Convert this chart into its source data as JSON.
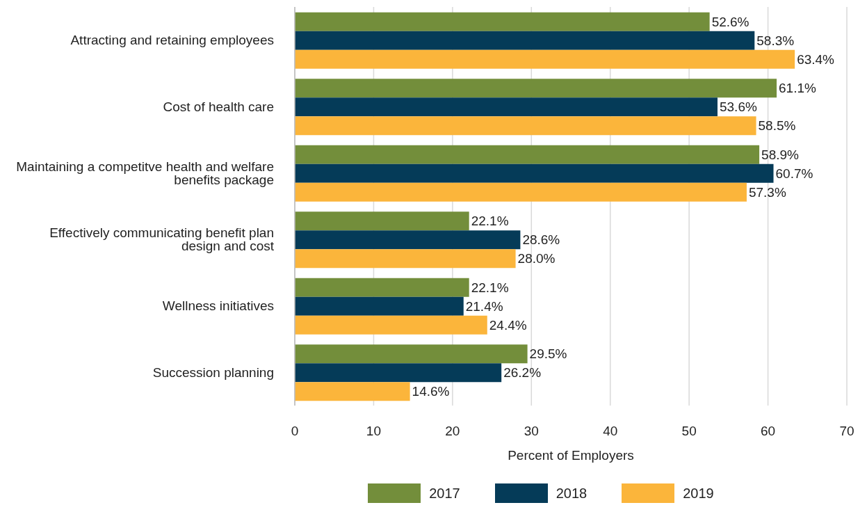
{
  "chart_data": {
    "type": "bar",
    "orientation": "horizontal",
    "xlabel": "Percent of Employers",
    "categories": [
      "Attracting and retaining employees",
      "Cost of health care",
      "Maintaining a competitve health and welfare benefits package",
      "Effectively communicating benefit plan design and cost",
      "Wellness initiatives",
      "Succession planning"
    ],
    "series": [
      {
        "name": "2017",
        "color": "#738e3b",
        "values": [
          52.6,
          61.1,
          58.9,
          22.1,
          22.1,
          29.5
        ],
        "value_labels": [
          "52.6%",
          "61.1%",
          "58.9%",
          "22.1%",
          "22.1%",
          "29.5%"
        ]
      },
      {
        "name": "2018",
        "color": "#053b58",
        "values": [
          58.3,
          53.6,
          60.7,
          28.6,
          21.4,
          26.2
        ],
        "value_labels": [
          "58.3%",
          "53.6%",
          "60.7%",
          "28.6%",
          "21.4%",
          "26.2%"
        ]
      },
      {
        "name": "2019",
        "color": "#fbb53b",
        "values": [
          63.4,
          58.5,
          57.3,
          28.0,
          24.4,
          14.6
        ],
        "value_labels": [
          "63.4%",
          "58.5%",
          "57.3%",
          "28.0%",
          "24.4%",
          "14.6%"
        ]
      }
    ],
    "xlim": [
      0,
      70
    ],
    "xticks": [
      0,
      10,
      20,
      30,
      40,
      50,
      60,
      70
    ],
    "grid": "x",
    "legend": "bottom"
  }
}
